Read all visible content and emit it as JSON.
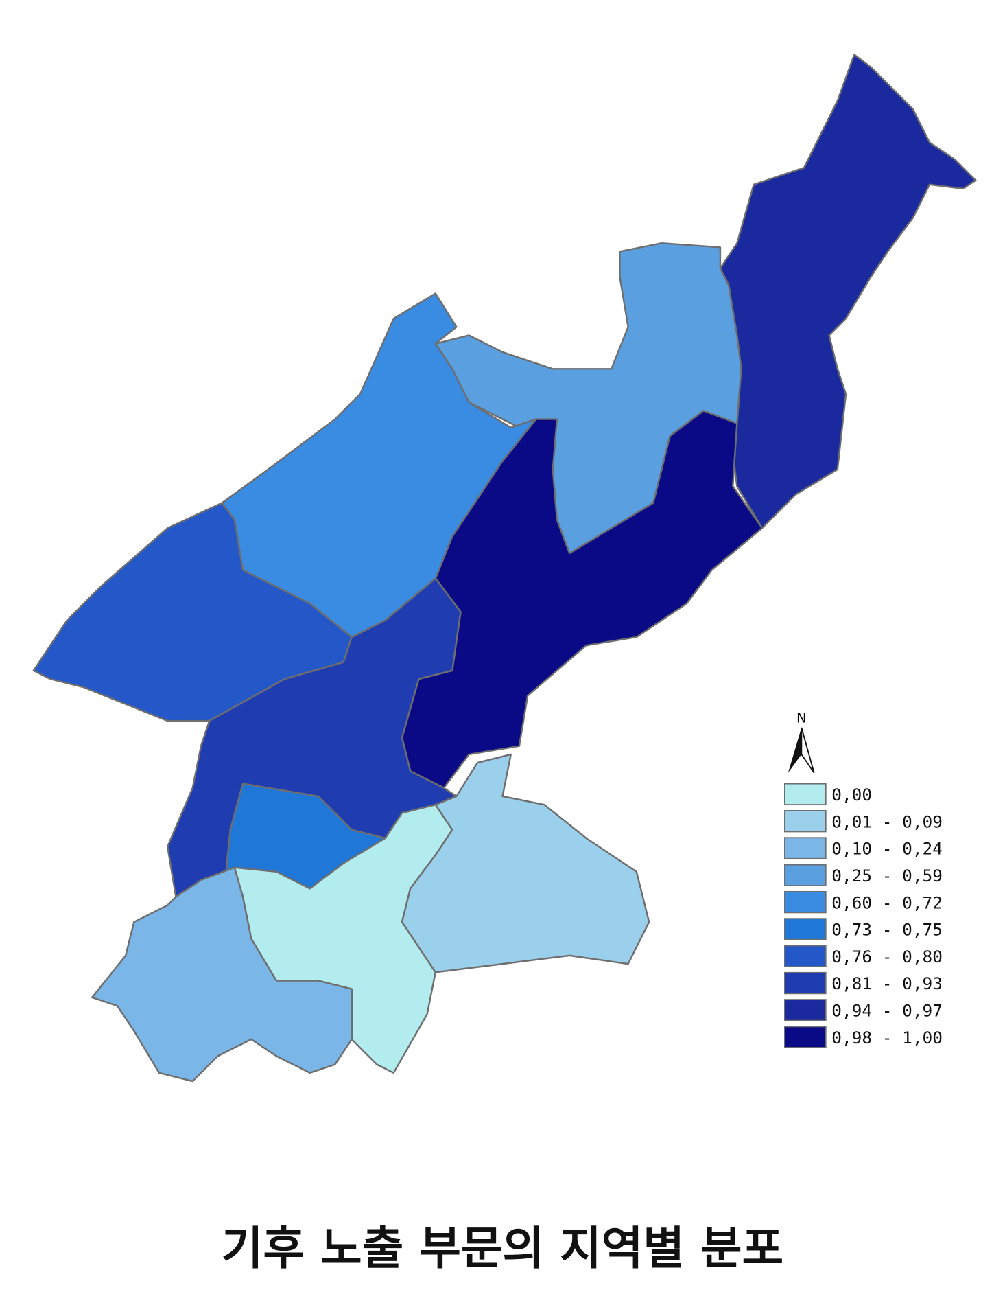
{
  "title": "기후 노출 부문의 지역별 분포",
  "north_arrow": {
    "label": "N",
    "icon": "north-arrow-icon"
  },
  "legend": {
    "classes": [
      {
        "label": "0,00",
        "color": "#b3ecef"
      },
      {
        "label": "0,01 - 0,09",
        "color": "#9bd0ec"
      },
      {
        "label": "0,10 - 0,24",
        "color": "#7ab6e8"
      },
      {
        "label": "0,25 - 0,59",
        "color": "#5a9fe0"
      },
      {
        "label": "0,60 - 0,72",
        "color": "#3a8be2"
      },
      {
        "label": "0,73 - 0,75",
        "color": "#1f78d8"
      },
      {
        "label": "0,76 - 0,80",
        "color": "#2458c8"
      },
      {
        "label": "0,81 - 0,93",
        "color": "#1f3cb0"
      },
      {
        "label": "0,94 - 0,97",
        "color": "#1a2a9e"
      },
      {
        "label": "0,98 - 1,00",
        "color": "#0a0a86"
      }
    ]
  },
  "regions": [
    {
      "class": 8
    },
    {
      "class": 3
    },
    {
      "class": 9
    },
    {
      "class": 4
    },
    {
      "class": 6
    },
    {
      "class": 7
    },
    {
      "class": 5
    },
    {
      "class": 0
    },
    {
      "class": 1
    },
    {
      "class": 2
    }
  ]
}
